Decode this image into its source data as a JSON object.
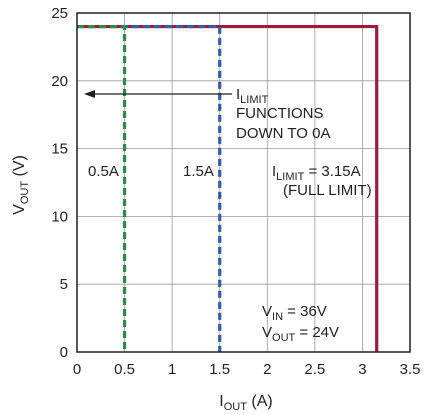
{
  "chart_data": {
    "type": "line",
    "x_axis": {
      "label": "I",
      "label_sub": "OUT",
      "label_unit": " (A)",
      "range": [
        0,
        3.5
      ],
      "ticks": [
        0,
        0.5,
        1,
        1.5,
        2,
        2.5,
        3,
        3.5
      ],
      "tick_labels": [
        "0",
        "0.5",
        "1",
        "1.5",
        "2",
        "2.5",
        "3",
        "3.5"
      ]
    },
    "y_axis": {
      "label": "V",
      "label_sub": "OUT",
      "label_unit": " (V)",
      "range": [
        0,
        25
      ],
      "ticks": [
        0,
        5,
        10,
        15,
        20,
        25
      ],
      "tick_labels": [
        "0",
        "5",
        "10",
        "15",
        "20",
        "25"
      ]
    },
    "grid": true,
    "series": [
      {
        "name": "3.15A",
        "color": "#9e1b3b",
        "style": "solid",
        "points": [
          [
            0,
            24
          ],
          [
            3.15,
            24
          ],
          [
            3.15,
            0
          ]
        ]
      },
      {
        "name": "1.5A",
        "color": "#2e5fa8",
        "style": "dashed",
        "points": [
          [
            0,
            24
          ],
          [
            1.5,
            24
          ],
          [
            1.5,
            0
          ]
        ]
      },
      {
        "name": "0.5A",
        "color": "#2f8a47",
        "style": "dashed",
        "points": [
          [
            0,
            24
          ],
          [
            0.5,
            24
          ],
          [
            0.5,
            0
          ]
        ]
      }
    ],
    "annotations": {
      "label_05": "0.5A",
      "label_15": "1.5A",
      "arrow_text": {
        "line1_main": "I",
        "line1_sub": "LIMIT",
        "line2": "FUNCTIONS",
        "line3": "DOWN TO 0A"
      },
      "full_limit": {
        "line1_main": "I",
        "line1_sub": "LIMIT",
        "line1_rest": " = 3.15A",
        "line2": "(FULL LIMIT)"
      },
      "conditions": {
        "vin_main": "V",
        "vin_sub": "IN",
        "vin_rest": " = 36V",
        "vout_main": "V",
        "vout_sub": "OUT",
        "vout_rest": " = 24V"
      }
    }
  }
}
